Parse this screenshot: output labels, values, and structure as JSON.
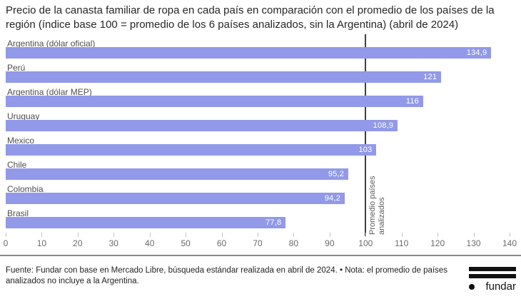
{
  "title": "Precio de la canasta familiar de ropa en cada país en comparación con el promedio de los países de la región (índice base 100 = promedio de los 6 países analizados, sin la Argentina) (abril de 2024)",
  "chart_data": {
    "type": "bar",
    "orientation": "horizontal",
    "categories": [
      "Argentina (dólar oficial)",
      "Perú",
      "Argentina (dólar MEP)",
      "Uruguay",
      "Mexico",
      "Chile",
      "Colombia",
      "Brasil"
    ],
    "values": [
      134.9,
      121,
      116,
      108.9,
      103,
      95.2,
      94.2,
      77.8
    ],
    "value_labels": [
      "134,9",
      "121",
      "116",
      "108,9",
      "103",
      "95,2",
      "94,2",
      "77,8"
    ],
    "xlim": [
      0,
      140
    ],
    "x_ticks": [
      0,
      10,
      20,
      30,
      40,
      50,
      60,
      70,
      80,
      90,
      100,
      110,
      120,
      130,
      140
    ],
    "grid": false,
    "legend": "none",
    "reference_line": {
      "value": 100,
      "label": "Promedio países analizados"
    },
    "bar_color": "#9199E8",
    "value_label_color": "#FFFFFF",
    "category_label_color": "#4D4D4D",
    "reference_line_color": "#3F3F3F"
  },
  "footer": {
    "note": "Fuente: Fundar con base en Mercado Libre, búsqueda estándar realizada en abril de 2024. • Nota: el promedio de países analizados no incluye a la Argentina.",
    "logo_text": "fundar"
  }
}
